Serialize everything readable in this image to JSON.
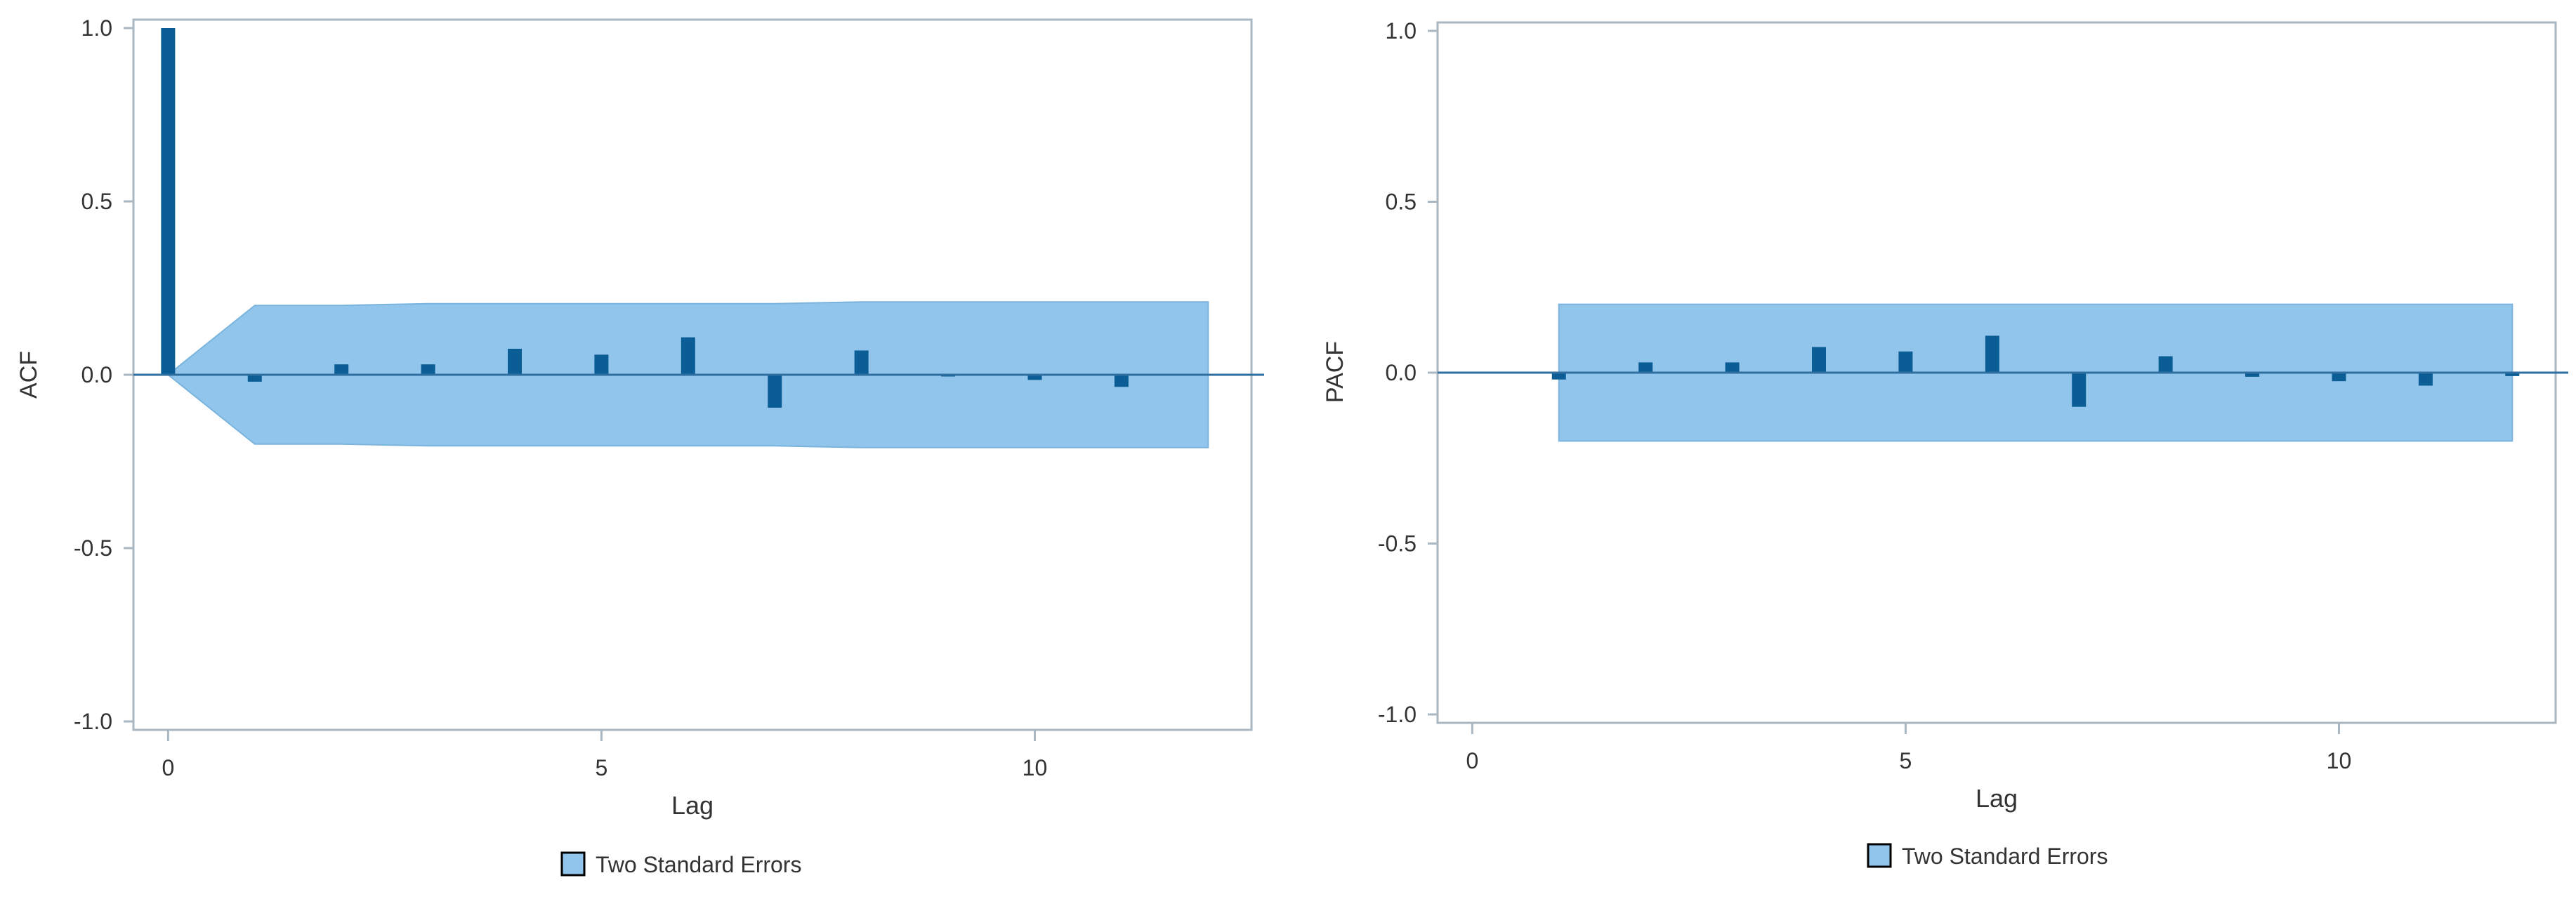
{
  "colors": {
    "band": "#92c5eb",
    "band_edge": "#7ab4de",
    "bar": "#0b5d96",
    "zero_line": "#2f6fa0",
    "frame": "#a9b7c2",
    "text": "#333333"
  },
  "chart_data": [
    {
      "type": "bar",
      "ylabel": "ACF",
      "xlabel": "Lag",
      "xlim": [
        -0.4,
        12.5
      ],
      "ylim": [
        -1.02,
        1.02
      ],
      "xticks": [
        0,
        5,
        10
      ],
      "yticks": [
        1.0,
        0.5,
        0.0,
        -0.5,
        -1.0
      ],
      "ytick_labels": [
        "1.0",
        "0.5",
        "0.0",
        "-0.5",
        "-1.0"
      ],
      "x": [
        0,
        1,
        2,
        3,
        4,
        5,
        6,
        7,
        8,
        9,
        10,
        11
      ],
      "values": [
        1.0,
        -0.02,
        0.03,
        0.03,
        0.075,
        0.058,
        0.108,
        -0.095,
        0.07,
        -0.005,
        -0.015,
        -0.035
      ],
      "band": {
        "name": "Two Standard Errors",
        "x": [
          0,
          1,
          2,
          3,
          4,
          5,
          6,
          7,
          8,
          9,
          10,
          11,
          12
        ],
        "upper": [
          0.0,
          0.2,
          0.2,
          0.205,
          0.205,
          0.205,
          0.205,
          0.205,
          0.21,
          0.21,
          0.21,
          0.21,
          0.21
        ],
        "lower": [
          0.0,
          -0.2,
          -0.2,
          -0.205,
          -0.205,
          -0.205,
          -0.205,
          -0.205,
          -0.21,
          -0.21,
          -0.21,
          -0.21,
          -0.21
        ]
      },
      "legend": {
        "label": "Two Standard Errors",
        "position": "bottom-center"
      }
    },
    {
      "type": "bar",
      "ylabel": "PACF",
      "xlabel": "Lag",
      "xlim": [
        -0.4,
        12.5
      ],
      "ylim": [
        -1.02,
        1.02
      ],
      "xticks": [
        0,
        5,
        10
      ],
      "yticks": [
        1.0,
        0.5,
        0.0,
        -0.5,
        -1.0
      ],
      "ytick_labels": [
        "1.0",
        "0.5",
        "0.0",
        "-0.5",
        "-1.0"
      ],
      "x": [
        1,
        2,
        3,
        4,
        5,
        6,
        7,
        8,
        9,
        10,
        11,
        12
      ],
      "values": [
        -0.02,
        0.03,
        0.03,
        0.075,
        0.062,
        0.108,
        -0.1,
        0.048,
        -0.012,
        -0.025,
        -0.038,
        -0.01
      ],
      "band": {
        "name": "Two Standard Errors",
        "x": [
          1,
          12
        ],
        "upper": [
          0.2,
          0.2
        ],
        "lower": [
          -0.2,
          -0.2
        ]
      },
      "legend": {
        "label": "Two Standard Errors",
        "position": "bottom-center"
      }
    }
  ]
}
